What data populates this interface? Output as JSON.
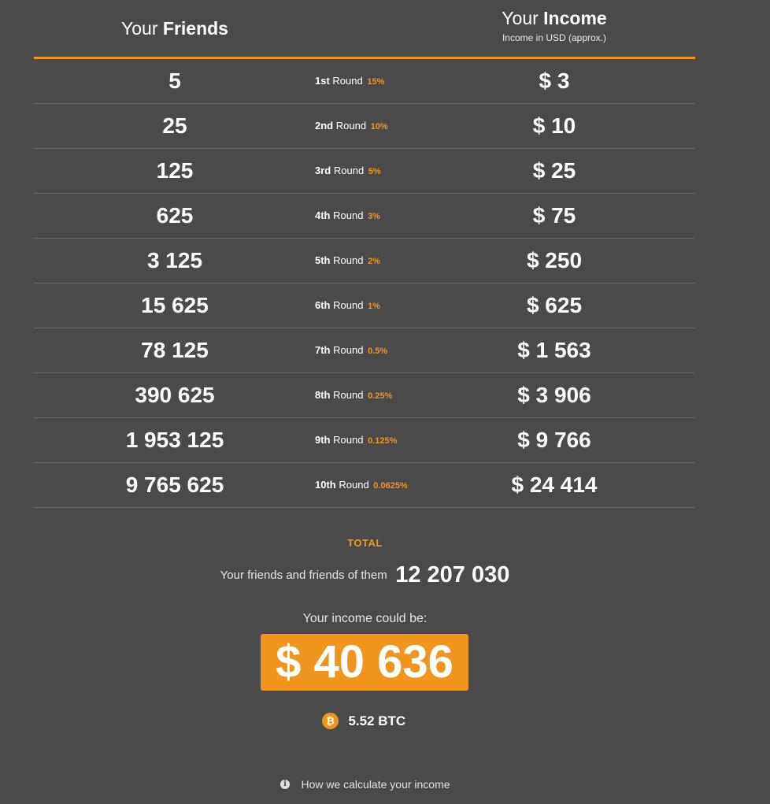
{
  "header": {
    "friends_prefix": "Your",
    "friends_bold": "Friends",
    "income_prefix": "Your",
    "income_bold": "Income",
    "income_subtitle": "Income in USD (approx.)"
  },
  "round_word": "Round",
  "rows": [
    {
      "friends": "5",
      "ordinal": "1st",
      "percent": "15%",
      "income": "$ 3"
    },
    {
      "friends": "25",
      "ordinal": "2nd",
      "percent": "10%",
      "income": "$ 10"
    },
    {
      "friends": "125",
      "ordinal": "3rd",
      "percent": "5%",
      "income": "$ 25"
    },
    {
      "friends": "625",
      "ordinal": "4th",
      "percent": "3%",
      "income": "$ 75"
    },
    {
      "friends": "3 125",
      "ordinal": "5th",
      "percent": "2%",
      "income": "$ 250"
    },
    {
      "friends": "15 625",
      "ordinal": "6th",
      "percent": "1%",
      "income": "$ 625"
    },
    {
      "friends": "78 125",
      "ordinal": "7th",
      "percent": "0.5%",
      "income": "$ 1 563"
    },
    {
      "friends": "390 625",
      "ordinal": "8th",
      "percent": "0.25%",
      "income": "$ 3 906"
    },
    {
      "friends": "1 953 125",
      "ordinal": "9th",
      "percent": "0.125%",
      "income": "$ 9 766"
    },
    {
      "friends": "9 765 625",
      "ordinal": "10th",
      "percent": "0.0625%",
      "income": "$ 24 414"
    }
  ],
  "total": {
    "label": "TOTAL",
    "friends_label": "Your friends and friends of them",
    "friends_value": "12 207 030",
    "income_label": "Your income could be:",
    "income_value": "$ 40 636",
    "btc_symbol": "₿",
    "btc_value": "5.52 BTC"
  },
  "footer": {
    "info_icon": "i",
    "how_link": "How we calculate your income"
  },
  "colors": {
    "background": "#4a4a4a",
    "accent": "#f0961e",
    "text": "#ffffff"
  }
}
